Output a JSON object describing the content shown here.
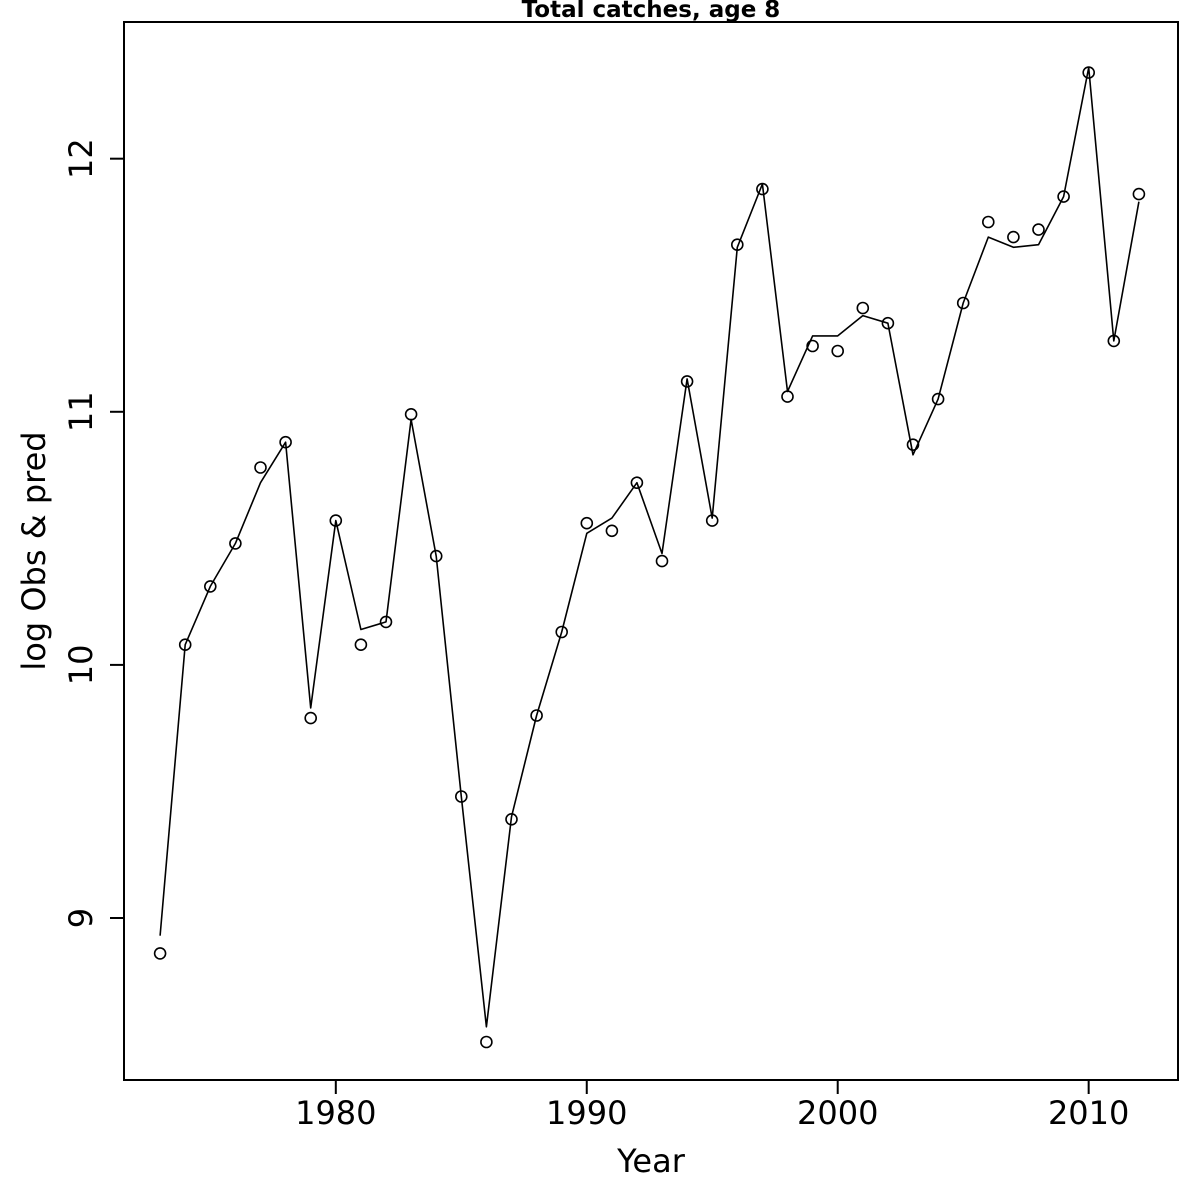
{
  "chart": {
    "title": "Total catches, age 8",
    "x_axis_title": "Year",
    "y_axis_title": "log Obs & pred"
  },
  "chart_data": {
    "type": "line",
    "title": "Total catches, age 8",
    "xlabel": "Year",
    "ylabel": "log Obs & pred",
    "grid": false,
    "legend": "none",
    "xlim": [
      1971.56,
      2013.56
    ],
    "ylim": [
      8.36,
      12.54
    ],
    "x_ticks": [
      1980,
      1990,
      2000,
      2010
    ],
    "y_ticks": [
      9,
      10,
      11,
      12
    ],
    "axis_color": "#000000",
    "line_color": "#000000",
    "point_color": "#000000",
    "background_color": "#ffffff",
    "x": [
      1973,
      1974,
      1975,
      1976,
      1977,
      1978,
      1979,
      1980,
      1981,
      1982,
      1983,
      1984,
      1985,
      1986,
      1987,
      1988,
      1989,
      1990,
      1991,
      1992,
      1993,
      1994,
      1995,
      1996,
      1997,
      1998,
      1999,
      2000,
      2001,
      2002,
      2003,
      2004,
      2005,
      2006,
      2007,
      2008,
      2009,
      2010,
      2011,
      2012
    ],
    "series": [
      {
        "name": "observed",
        "style": "open-circle-points",
        "values": [
          8.86,
          10.08,
          10.31,
          10.48,
          10.78,
          10.88,
          9.79,
          10.57,
          10.08,
          10.17,
          10.99,
          10.43,
          9.48,
          8.51,
          9.39,
          9.8,
          10.13,
          10.56,
          10.53,
          10.72,
          10.41,
          11.12,
          10.57,
          11.66,
          11.88,
          11.06,
          11.26,
          11.24,
          11.41,
          11.35,
          10.87,
          11.05,
          11.43,
          11.75,
          11.69,
          11.72,
          11.85,
          12.34,
          11.28,
          11.86
        ]
      },
      {
        "name": "predicted",
        "style": "line",
        "values": [
          8.93,
          10.08,
          10.31,
          10.48,
          10.72,
          10.88,
          9.83,
          10.57,
          10.14,
          10.17,
          10.97,
          10.43,
          9.48,
          8.57,
          9.4,
          9.8,
          10.13,
          10.52,
          10.58,
          10.72,
          10.44,
          11.13,
          10.58,
          11.65,
          11.9,
          11.08,
          11.3,
          11.3,
          11.38,
          11.35,
          10.83,
          11.05,
          11.43,
          11.69,
          11.65,
          11.66,
          11.85,
          12.36,
          11.28,
          11.83
        ]
      }
    ]
  }
}
